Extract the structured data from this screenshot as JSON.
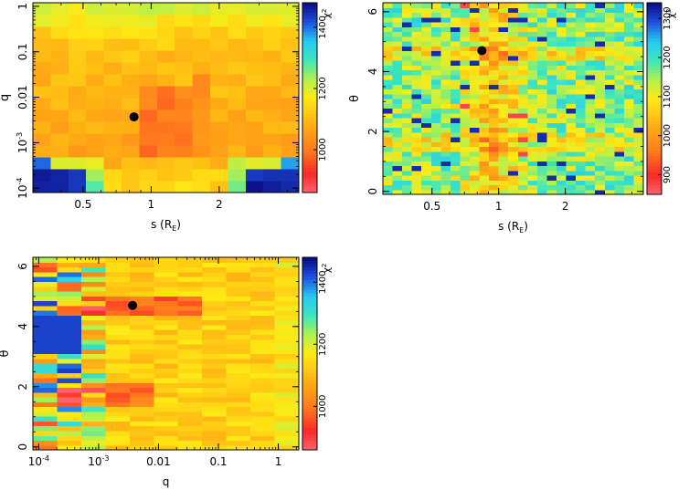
{
  "chart_data": [
    {
      "id": "panel-s-q",
      "type": "heatmap",
      "title": "",
      "xlabel": "s (R",
      "xlabel_sub": "E",
      "xlabel_close": ")",
      "ylabel": "q",
      "x_scale": "log",
      "y_scale": "log",
      "xlim": [
        0.3,
        4.5
      ],
      "ylim": [
        8e-05,
        1.2
      ],
      "x_ticks": [
        {
          "value": 0.5,
          "label": "0.5"
        },
        {
          "value": 1,
          "label": "1"
        },
        {
          "value": 2,
          "label": "2"
        }
      ],
      "y_ticks": [
        {
          "value": 0.0001,
          "label": "10",
          "sup": "-4"
        },
        {
          "value": 0.001,
          "label": "10",
          "sup": "-3"
        },
        {
          "value": 0.01,
          "label": "0.01"
        },
        {
          "value": 0.1,
          "label": "0.1"
        },
        {
          "value": 1,
          "label": "1"
        }
      ],
      "grid_x_cells": 15,
      "grid_y_cells": 16,
      "best_fit_point": {
        "x": 0.84,
        "y": 0.0037
      },
      "colorbar": {
        "label": "χ",
        "label_sup": "2",
        "range": [
          860,
          1480
        ],
        "ticks": [
          {
            "value": 1000,
            "label": "1000"
          },
          {
            "value": 1200,
            "label": "1200"
          },
          {
            "value": 1400,
            "label": "1400"
          }
        ]
      }
    },
    {
      "id": "panel-s-theta",
      "type": "heatmap",
      "title": "",
      "xlabel": "s (R",
      "xlabel_sub": "E",
      "xlabel_close": ")",
      "ylabel": "θ",
      "x_scale": "log",
      "y_scale": "linear",
      "xlim": [
        0.3,
        4.5
      ],
      "ylim": [
        -0.1,
        6.3
      ],
      "x_ticks": [
        {
          "value": 0.5,
          "label": "0.5"
        },
        {
          "value": 1,
          "label": "1"
        },
        {
          "value": 2,
          "label": "2"
        }
      ],
      "y_ticks": [
        {
          "value": 0,
          "label": "0"
        },
        {
          "value": 2,
          "label": "2"
        },
        {
          "value": 4,
          "label": "4"
        },
        {
          "value": 6,
          "label": "6"
        }
      ],
      "grid_x_cells": 27,
      "grid_y_cells": 40,
      "best_fit_point": {
        "x": 0.84,
        "y": 4.7
      },
      "colorbar": {
        "label": "χ",
        "label_sup": "2",
        "range": [
          850,
          1340
        ],
        "ticks": [
          {
            "value": 900,
            "label": "900"
          },
          {
            "value": 1000,
            "label": "1000"
          },
          {
            "value": 1100,
            "label": "1100"
          },
          {
            "value": 1200,
            "label": "1200"
          },
          {
            "value": 1300,
            "label": "1300"
          }
        ]
      }
    },
    {
      "id": "panel-q-theta",
      "type": "heatmap",
      "title": "",
      "xlabel": "q",
      "ylabel": "θ",
      "x_scale": "log",
      "y_scale": "linear",
      "xlim": [
        8e-05,
        2.2
      ],
      "ylim": [
        -0.1,
        6.3
      ],
      "x_ticks": [
        {
          "value": 0.0001,
          "label": "10",
          "sup": "-4"
        },
        {
          "value": 0.001,
          "label": "10",
          "sup": "-3"
        },
        {
          "value": 0.01,
          "label": "0.01"
        },
        {
          "value": 0.1,
          "label": "0.1"
        },
        {
          "value": 1,
          "label": "1"
        }
      ],
      "y_ticks": [
        {
          "value": 0,
          "label": "0"
        },
        {
          "value": 2,
          "label": "2"
        },
        {
          "value": 4,
          "label": "4"
        },
        {
          "value": 6,
          "label": "6"
        }
      ],
      "grid_x_cells": 11,
      "grid_y_cells": 40,
      "best_fit_point": {
        "x": 0.0037,
        "y": 4.7
      },
      "colorbar": {
        "label": "χ",
        "label_sup": "2",
        "range": [
          860,
          1480
        ],
        "ticks": [
          {
            "value": 1000,
            "label": "1000"
          },
          {
            "value": 1200,
            "label": "1200"
          },
          {
            "value": 1400,
            "label": "1400"
          }
        ]
      }
    }
  ]
}
